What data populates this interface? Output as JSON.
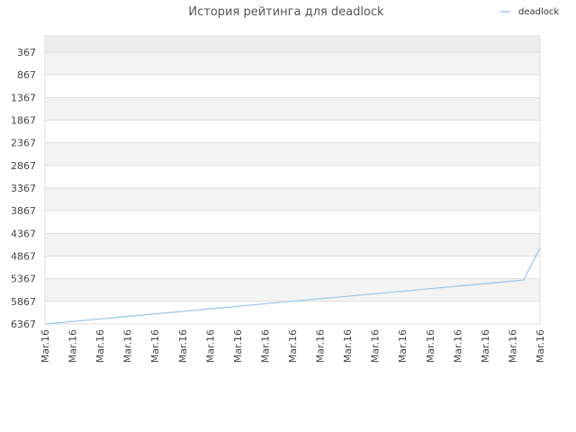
{
  "chart_data": {
    "type": "line",
    "title": "История рейтинга для deadlock",
    "xlabel": "",
    "ylabel": "",
    "y_reversed": true,
    "ylim": [
      6367,
      367
    ],
    "y_ticks": [
      367,
      867,
      1367,
      1867,
      2367,
      2867,
      3367,
      3867,
      4367,
      4867,
      5367,
      5867,
      6367
    ],
    "x_ticks": [
      "Mar.16",
      "Mar.16",
      "Mar.16",
      "Mar.16",
      "Mar.16",
      "Mar.16",
      "Mar.16",
      "Mar.16",
      "Mar.16",
      "Mar.16",
      "Mar.16",
      "Mar.16",
      "Mar.16",
      "Mar.16",
      "Mar.16",
      "Mar.16",
      "Mar.16",
      "Mar.16",
      "Mar.16"
    ],
    "grid": true,
    "legend_position": "top-right",
    "series": [
      {
        "name": "deadlock",
        "color": "#9fc8ee",
        "points": [
          {
            "x": 0,
            "y": 6367
          },
          {
            "x": 17.4,
            "y": 5397
          },
          {
            "x": 18,
            "y": 4687
          }
        ]
      }
    ]
  }
}
